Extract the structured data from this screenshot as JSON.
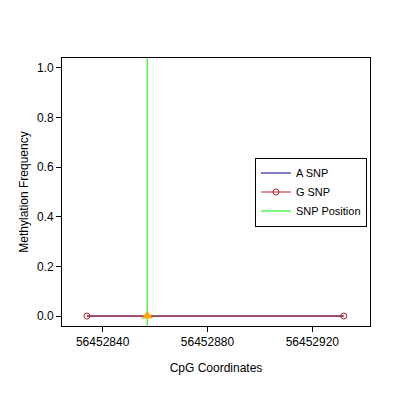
{
  "chart_data": {
    "type": "line",
    "x_label": "CpG Coordinates",
    "y_label": "Methylation Frequency",
    "x": [
      56452834,
      56452932
    ],
    "series": [
      {
        "name": "A SNP",
        "color": "#00008b",
        "values": [
          0,
          0
        ]
      },
      {
        "name": "G SNP",
        "color": "#b22222",
        "values": [
          0,
          0
        ],
        "marker": "circle-open"
      }
    ],
    "snp": {
      "name": "SNP Position",
      "color": "#00ee00",
      "x": 56452857,
      "value": 0,
      "marker": "triangle-up",
      "marker_color": "#ffa500"
    },
    "xlim": [
      56452824.5,
      56452942
    ],
    "xticks": [
      56452840,
      56452880,
      56452920
    ],
    "ylim": [
      -0.04,
      1.04
    ],
    "yticks": [
      {
        "value": 0,
        "label": "0.0"
      },
      0.2,
      0.4,
      0.6,
      0.8,
      {
        "value": 1,
        "label": "1.0"
      }
    ],
    "grid": false,
    "legend": "right"
  }
}
